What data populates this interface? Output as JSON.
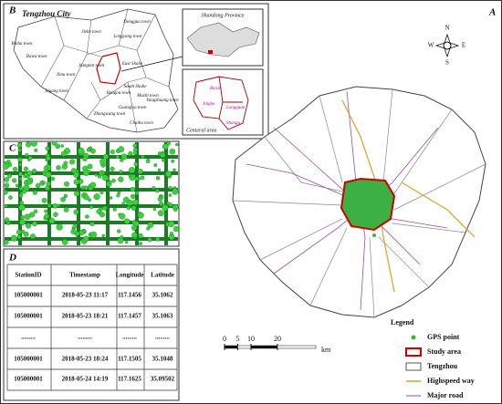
{
  "panel_labels": {
    "a": "A",
    "b": "B",
    "c": "C",
    "d": "D"
  },
  "panel_b": {
    "title": "Tengzhou City",
    "towns": [
      "Dongguo town",
      "Jiehe town",
      "Longyang town",
      "Binhu town",
      "Dawu town",
      "Jiangtan town",
      "Xigang town",
      "Jimu town",
      "Baogou town",
      "East Shahe",
      "South Shahe",
      "Muzhi town",
      "Guanqiao town",
      "Zhangwang town",
      "Yangzhuang town",
      "Chaihu town"
    ]
  },
  "inset_shandong": {
    "title": "Shandong Province"
  },
  "inset_central": {
    "title": "Centeral area",
    "districts": [
      "Beixin",
      "Jinghe",
      "Longquan",
      "Shangu"
    ]
  },
  "compass": {
    "n": "N",
    "s": "S",
    "w": "W",
    "e": "E"
  },
  "scale_bar": {
    "ticks": [
      0,
      5,
      10,
      20
    ],
    "unit": "km"
  },
  "legend": {
    "title": "Legend",
    "items": [
      "GPS point",
      "Study area",
      "Tengzhou",
      "Highspeed way",
      "Major road"
    ]
  },
  "table": {
    "header": [
      "StationID",
      "Timestamp",
      "Longitude",
      "Latitude"
    ],
    "rows": [
      [
        "105000001",
        "2018-05-23 11:17",
        117.1456,
        35.1062
      ],
      [
        "105000001",
        "2018-05-23 18:21",
        117.1457,
        35.1063
      ],
      [
        ".........",
        ".........",
        ".........",
        "........."
      ],
      [
        "105000001",
        "2018-05-23 18:24",
        117.1505,
        35.1048
      ],
      [
        "105000001",
        "2018-05-24 14:19",
        117.1625,
        35.09502
      ]
    ]
  }
}
